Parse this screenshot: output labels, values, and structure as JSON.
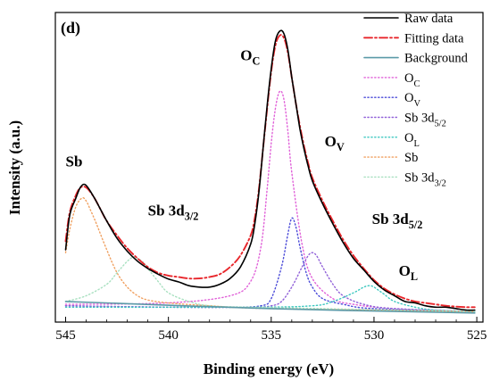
{
  "chart_data": {
    "type": "line",
    "panel_label": "(d)",
    "xlabel": "Binding energy (eV)",
    "ylabel": "Intensity (a.u.)",
    "xlim": [
      545.5,
      524.7
    ],
    "x_reversed": true,
    "ylim": [
      0,
      1
    ],
    "y_ticks_shown": false,
    "xticks": [
      545,
      540,
      535,
      530,
      525
    ],
    "grid": false,
    "legend_position": "top-right",
    "series": [
      {
        "name": "Raw data",
        "color": "#000000",
        "style": "solid",
        "x": [
          545.0,
          544.8,
          544.5,
          544.3,
          544.1,
          543.9,
          543.6,
          543.3,
          543.0,
          542.5,
          542.0,
          541.5,
          541.0,
          540.5,
          540.0,
          539.5,
          539.0,
          538.5,
          538.0,
          537.5,
          537.0,
          536.5,
          536.0,
          535.8,
          535.6,
          535.4,
          535.2,
          535.0,
          534.8,
          534.6,
          534.4,
          534.2,
          534.0,
          533.8,
          533.6,
          533.4,
          533.2,
          533.0,
          532.5,
          532.0,
          531.5,
          531.0,
          530.5,
          530.0,
          529.5,
          529.0,
          528.5,
          528.0,
          527.5,
          527.0,
          526.5,
          526.0,
          525.5,
          525.1
        ],
        "y": [
          0.23,
          0.35,
          0.41,
          0.445,
          0.458,
          0.445,
          0.41,
          0.37,
          0.33,
          0.27,
          0.225,
          0.19,
          0.165,
          0.145,
          0.128,
          0.118,
          0.105,
          0.1,
          0.1,
          0.11,
          0.13,
          0.17,
          0.25,
          0.32,
          0.43,
          0.58,
          0.73,
          0.86,
          0.955,
          0.99,
          0.985,
          0.93,
          0.83,
          0.74,
          0.65,
          0.58,
          0.52,
          0.47,
          0.39,
          0.32,
          0.255,
          0.2,
          0.16,
          0.12,
          0.09,
          0.07,
          0.05,
          0.045,
          0.035,
          0.03,
          0.03,
          0.025,
          0.02,
          0.02
        ]
      },
      {
        "name": "Fitting data",
        "color": "#e8262b",
        "style": "dashdot",
        "x": [
          545.0,
          544.8,
          544.5,
          544.3,
          544.1,
          543.9,
          543.6,
          543.3,
          543.0,
          542.5,
          542.0,
          541.5,
          541.0,
          540.5,
          540.0,
          539.5,
          539.0,
          538.5,
          538.0,
          537.5,
          537.0,
          536.5,
          536.0,
          535.8,
          535.6,
          535.4,
          535.2,
          535.0,
          534.8,
          534.6,
          534.4,
          534.2,
          534.0,
          533.8,
          533.6,
          533.4,
          533.2,
          533.0,
          532.5,
          532.0,
          531.5,
          531.0,
          530.5,
          530.0,
          529.5,
          529.0,
          528.5,
          528.0,
          527.5,
          527.0,
          526.5,
          526.0,
          525.5,
          525.1
        ],
        "y": [
          0.26,
          0.36,
          0.42,
          0.445,
          0.45,
          0.44,
          0.41,
          0.37,
          0.33,
          0.28,
          0.235,
          0.2,
          0.17,
          0.15,
          0.14,
          0.135,
          0.13,
          0.13,
          0.135,
          0.145,
          0.17,
          0.21,
          0.28,
          0.34,
          0.44,
          0.58,
          0.72,
          0.85,
          0.94,
          0.975,
          0.97,
          0.92,
          0.83,
          0.74,
          0.66,
          0.59,
          0.53,
          0.48,
          0.4,
          0.33,
          0.265,
          0.21,
          0.165,
          0.125,
          0.095,
          0.075,
          0.06,
          0.05,
          0.045,
          0.04,
          0.035,
          0.032,
          0.03,
          0.03
        ]
      },
      {
        "name": "Background",
        "color": "#5b9aa8",
        "style": "solid",
        "x": [
          545.0,
          535.0,
          525.1
        ],
        "y": [
          0.05,
          0.025,
          0.01
        ]
      },
      {
        "name": "O_C",
        "color": "#e060d8",
        "style": "dotted",
        "x": [
          545.0,
          540.0,
          537.0,
          536.0,
          535.5,
          535.2,
          535.0,
          534.8,
          534.6,
          534.4,
          534.2,
          534.0,
          533.5,
          533.0,
          532.0,
          531.0,
          529.0,
          525.1
        ],
        "y": [
          0.04,
          0.045,
          0.07,
          0.12,
          0.24,
          0.44,
          0.6,
          0.72,
          0.78,
          0.76,
          0.65,
          0.5,
          0.25,
          0.13,
          0.06,
          0.04,
          0.025,
          0.015
        ]
      },
      {
        "name": "O_V",
        "color": "#4a4ad8",
        "style": "dotted",
        "x": [
          545.0,
          540.0,
          537.0,
          535.5,
          535.0,
          534.5,
          534.2,
          534.0,
          533.8,
          533.6,
          533.3,
          533.0,
          532.5,
          531.5,
          530.0,
          525.1
        ],
        "y": [
          0.035,
          0.03,
          0.03,
          0.035,
          0.06,
          0.17,
          0.28,
          0.34,
          0.31,
          0.24,
          0.15,
          0.1,
          0.06,
          0.04,
          0.025,
          0.015
        ]
      },
      {
        "name": "Sb 3d_5/2",
        "color": "#9060d8",
        "style": "dotted",
        "x": [
          545.0,
          540.0,
          536.0,
          535.0,
          534.5,
          534.0,
          533.5,
          533.2,
          533.0,
          532.8,
          532.5,
          532.0,
          531.5,
          530.5,
          529.0,
          525.1
        ],
        "y": [
          0.035,
          0.03,
          0.03,
          0.035,
          0.05,
          0.1,
          0.17,
          0.21,
          0.22,
          0.21,
          0.17,
          0.11,
          0.07,
          0.04,
          0.025,
          0.015
        ]
      },
      {
        "name": "O_L",
        "color": "#3cc8c0",
        "style": "dotted",
        "x": [
          545.0,
          536.0,
          533.0,
          532.0,
          531.0,
          530.5,
          530.2,
          530.0,
          529.8,
          529.5,
          529.0,
          528.0,
          527.0,
          525.1
        ],
        "y": [
          0.03,
          0.03,
          0.035,
          0.05,
          0.08,
          0.1,
          0.105,
          0.1,
          0.09,
          0.075,
          0.05,
          0.03,
          0.02,
          0.015
        ]
      },
      {
        "name": "Sb",
        "color": "#f0a060",
        "style": "dotted",
        "x": [
          545.0,
          544.8,
          544.5,
          544.2,
          544.0,
          543.8,
          543.5,
          543.0,
          542.5,
          542.0,
          541.5,
          541.0,
          540.0,
          538.0,
          535.0,
          525.1
        ],
        "y": [
          0.22,
          0.3,
          0.38,
          0.41,
          0.4,
          0.37,
          0.32,
          0.23,
          0.15,
          0.1,
          0.07,
          0.055,
          0.045,
          0.035,
          0.025,
          0.015
        ]
      },
      {
        "name": "Sb 3d_3/2",
        "color": "#a8e0c0",
        "style": "dotted",
        "x": [
          545.0,
          544.0,
          543.0,
          542.5,
          542.0,
          541.7,
          541.5,
          541.2,
          541.0,
          540.5,
          540.0,
          539.0,
          538.0,
          536.0,
          525.1
        ],
        "y": [
          0.05,
          0.07,
          0.11,
          0.15,
          0.19,
          0.205,
          0.2,
          0.185,
          0.165,
          0.12,
          0.08,
          0.05,
          0.035,
          0.03,
          0.015
        ]
      }
    ],
    "legend": [
      {
        "text": "Raw data",
        "sub": ""
      },
      {
        "text": "Fitting data",
        "sub": ""
      },
      {
        "text": "Background",
        "sub": ""
      },
      {
        "text": "O",
        "sub": "C"
      },
      {
        "text": "O",
        "sub": "V"
      },
      {
        "text": "Sb 3d",
        "sub": "5/2"
      },
      {
        "text": "O",
        "sub": "L"
      },
      {
        "text": "Sb",
        "sub": ""
      },
      {
        "text": "Sb 3d",
        "sub": "3/2"
      }
    ],
    "annotations": [
      {
        "text": "Sb",
        "sub": "",
        "x": 545.0,
        "y": 0.52
      },
      {
        "text": "Sb 3d",
        "sub": "3/2",
        "x": 541.0,
        "y": 0.35
      },
      {
        "text": "O",
        "sub": "C",
        "x": 536.5,
        "y": 0.89
      },
      {
        "text": "O",
        "sub": "V",
        "x": 532.4,
        "y": 0.59
      },
      {
        "text": "Sb 3d",
        "sub": "5/2",
        "x": 530.1,
        "y": 0.32
      },
      {
        "text": "O",
        "sub": "L",
        "x": 528.8,
        "y": 0.14
      }
    ]
  }
}
